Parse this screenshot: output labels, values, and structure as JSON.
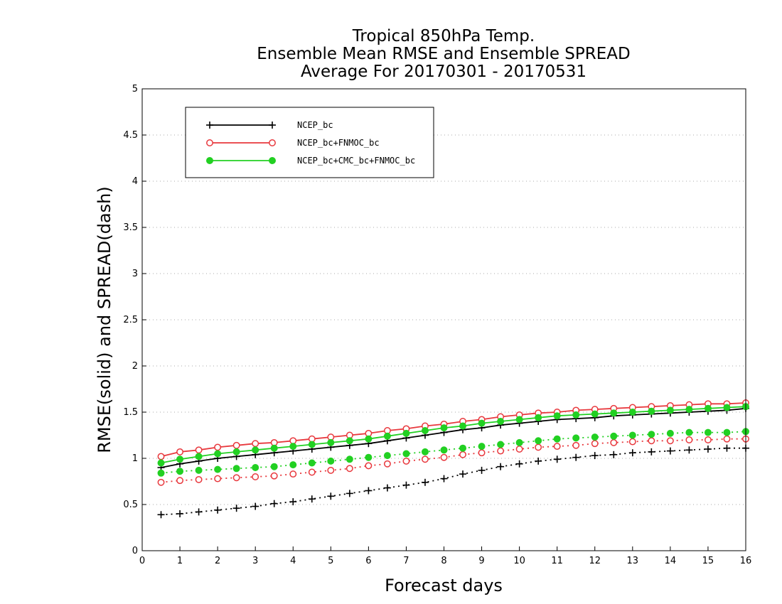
{
  "chart_data": {
    "type": "line",
    "title": [
      "Tropical 850hPa Temp.",
      "Ensemble Mean RMSE and Ensemble SPREAD",
      "Average For 20170301 - 20170531"
    ],
    "xlabel": "Forecast days",
    "ylabel": "RMSE(solid)  and  SPREAD(dash)",
    "xlim": [
      0,
      16
    ],
    "ylim": [
      0,
      5
    ],
    "xticks": [
      0,
      1,
      2,
      3,
      4,
      5,
      6,
      7,
      8,
      9,
      10,
      11,
      12,
      13,
      14,
      15,
      16
    ],
    "yticks": [
      0,
      0.5,
      1,
      1.5,
      2,
      2.5,
      3,
      3.5,
      4,
      4.5,
      5
    ],
    "ytick_labels": [
      "0",
      "0.5",
      "1",
      "1.5",
      "2",
      "2.5",
      "3",
      "3.5",
      "4",
      "4.5",
      "5"
    ],
    "grid": "horizontal dotted",
    "legend_position": "top-left",
    "x": [
      0.5,
      1,
      1.5,
      2,
      2.5,
      3,
      3.5,
      4,
      4.5,
      5,
      5.5,
      6,
      6.5,
      7,
      7.5,
      8,
      8.5,
      9,
      9.5,
      10,
      10.5,
      11,
      11.5,
      12,
      12.5,
      13,
      13.5,
      14,
      14.5,
      15,
      15.5,
      16
    ],
    "series": [
      {
        "name": "NCEP_bc",
        "color": "#000000",
        "marker": "plus",
        "rmse": [
          0.9,
          0.94,
          0.97,
          1.0,
          1.02,
          1.04,
          1.06,
          1.08,
          1.1,
          1.12,
          1.14,
          1.16,
          1.19,
          1.22,
          1.25,
          1.28,
          1.31,
          1.33,
          1.36,
          1.38,
          1.4,
          1.42,
          1.43,
          1.44,
          1.46,
          1.47,
          1.48,
          1.49,
          1.5,
          1.51,
          1.52,
          1.54
        ],
        "spread": [
          0.39,
          0.4,
          0.42,
          0.44,
          0.46,
          0.48,
          0.51,
          0.53,
          0.56,
          0.59,
          0.62,
          0.65,
          0.68,
          0.71,
          0.74,
          0.78,
          0.83,
          0.87,
          0.91,
          0.94,
          0.97,
          0.99,
          1.01,
          1.03,
          1.04,
          1.06,
          1.07,
          1.08,
          1.09,
          1.1,
          1.11,
          1.11
        ]
      },
      {
        "name": "NCEP_bc+FNMOC_bc",
        "color": "#e8383d",
        "marker": "open-circle",
        "rmse": [
          1.02,
          1.07,
          1.09,
          1.12,
          1.14,
          1.16,
          1.17,
          1.19,
          1.21,
          1.23,
          1.25,
          1.27,
          1.3,
          1.32,
          1.35,
          1.37,
          1.4,
          1.42,
          1.45,
          1.47,
          1.49,
          1.5,
          1.52,
          1.53,
          1.54,
          1.55,
          1.56,
          1.57,
          1.58,
          1.59,
          1.59,
          1.6
        ],
        "spread": [
          0.74,
          0.76,
          0.77,
          0.78,
          0.79,
          0.8,
          0.81,
          0.83,
          0.85,
          0.87,
          0.89,
          0.92,
          0.94,
          0.97,
          0.99,
          1.01,
          1.04,
          1.06,
          1.08,
          1.1,
          1.12,
          1.13,
          1.14,
          1.16,
          1.17,
          1.18,
          1.19,
          1.19,
          1.2,
          1.2,
          1.21,
          1.21
        ]
      },
      {
        "name": "NCEP_bc+CMC_bc+FNMOC_bc",
        "color": "#22d022",
        "marker": "filled-circle",
        "rmse": [
          0.95,
          0.99,
          1.02,
          1.05,
          1.07,
          1.09,
          1.11,
          1.13,
          1.15,
          1.17,
          1.19,
          1.21,
          1.24,
          1.27,
          1.3,
          1.33,
          1.35,
          1.38,
          1.4,
          1.42,
          1.44,
          1.46,
          1.47,
          1.48,
          1.49,
          1.5,
          1.51,
          1.52,
          1.53,
          1.54,
          1.55,
          1.56
        ],
        "spread": [
          0.84,
          0.86,
          0.87,
          0.88,
          0.89,
          0.9,
          0.91,
          0.93,
          0.95,
          0.97,
          0.99,
          1.01,
          1.03,
          1.05,
          1.07,
          1.09,
          1.11,
          1.13,
          1.15,
          1.17,
          1.19,
          1.21,
          1.22,
          1.23,
          1.24,
          1.25,
          1.26,
          1.27,
          1.28,
          1.28,
          1.28,
          1.29
        ]
      }
    ]
  }
}
